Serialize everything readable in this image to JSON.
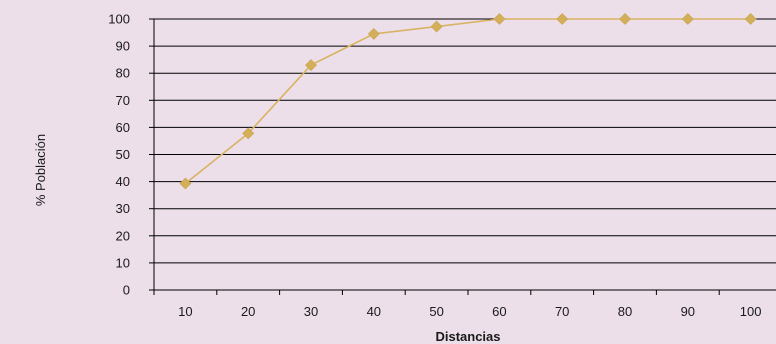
{
  "chart_data": {
    "type": "line",
    "title": "",
    "xlabel": "Distancias",
    "ylabel": "% Población",
    "x": [
      10,
      20,
      30,
      40,
      50,
      60,
      70,
      80,
      90,
      100
    ],
    "series": [
      {
        "values": [
          39.3,
          57.8,
          83.0,
          94.5,
          97.2,
          100,
          100,
          100,
          100,
          100
        ]
      }
    ],
    "ylim": [
      0,
      100
    ],
    "yticks": [
      0,
      10,
      20,
      30,
      40,
      50,
      60,
      70,
      80,
      90,
      100
    ],
    "grid": true,
    "legend": "none",
    "colors": {
      "series": "#d9b364",
      "marker": "#d4af5a",
      "grid": "#000000",
      "background": "#ecdfe9"
    }
  }
}
